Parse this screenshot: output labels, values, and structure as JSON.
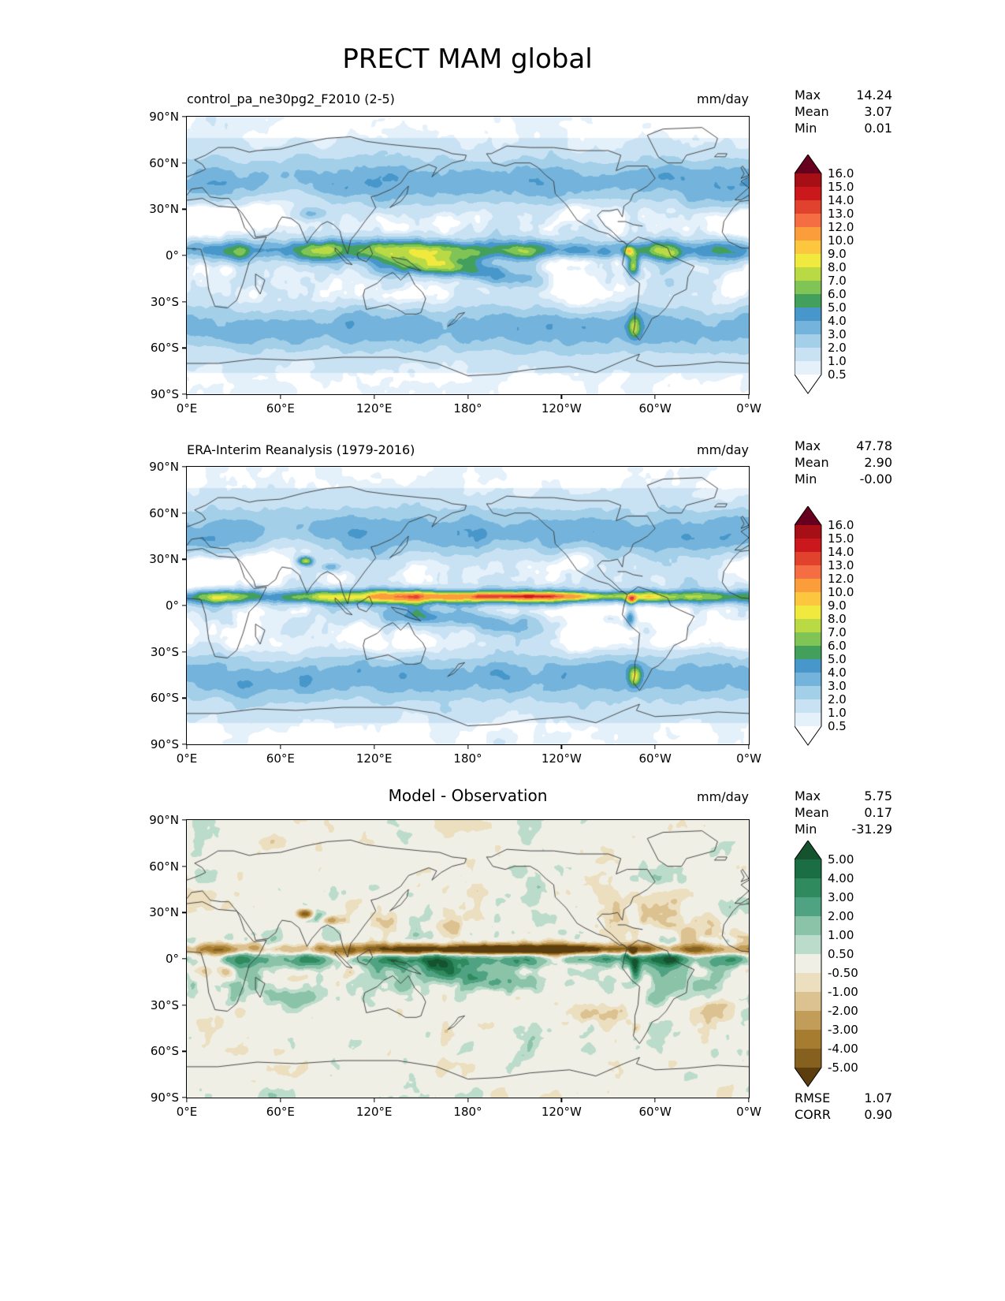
{
  "title": "PRECT MAM global",
  "axes": {
    "lat_ticks": [
      "90°N",
      "60°N",
      "30°N",
      "0°",
      "30°S",
      "60°S",
      "90°S"
    ],
    "lon_ticks": [
      "0°E",
      "60°E",
      "120°E",
      "180°",
      "120°W",
      "60°W",
      "0°W"
    ]
  },
  "panels": [
    {
      "subtitle": "control_pa_ne30pg2_F2010 (2-5)",
      "units": "mm/day",
      "stats": [
        {
          "label": "Max",
          "value": "14.24"
        },
        {
          "label": "Mean",
          "value": "3.07"
        },
        {
          "label": "Min",
          "value": "0.01"
        }
      ],
      "colorbar": {
        "labels": [
          "16.0",
          "15.0",
          "14.0",
          "13.0",
          "12.0",
          "10.0",
          "9.0",
          "8.0",
          "7.0",
          "6.0",
          "5.0",
          "4.0",
          "3.0",
          "2.0",
          "1.0",
          "0.5"
        ],
        "levels": [
          0.5,
          1,
          2,
          3,
          4,
          5,
          6,
          7,
          8,
          9,
          10,
          12,
          13,
          14,
          15,
          16
        ],
        "colors_low_to_high": [
          "#ffffff",
          "#e4f0fa",
          "#c9e2f3",
          "#a3cfe9",
          "#74b4dc",
          "#4897cb",
          "#42a05c",
          "#7fc454",
          "#bada45",
          "#f2e93e",
          "#fdc63f",
          "#fb9d3b",
          "#f46d43",
          "#e1422e",
          "#cb181d",
          "#a50f15",
          "#67001f"
        ]
      }
    },
    {
      "subtitle": "ERA-Interim Reanalysis (1979-2016)",
      "units": "mm/day",
      "stats": [
        {
          "label": "Max",
          "value": "47.78"
        },
        {
          "label": "Mean",
          "value": "2.90"
        },
        {
          "label": "Min",
          "value": "-0.00"
        }
      ],
      "colorbar": {
        "labels": [
          "16.0",
          "15.0",
          "14.0",
          "13.0",
          "12.0",
          "10.0",
          "9.0",
          "8.0",
          "7.0",
          "6.0",
          "5.0",
          "4.0",
          "3.0",
          "2.0",
          "1.0",
          "0.5"
        ],
        "levels": [
          0.5,
          1,
          2,
          3,
          4,
          5,
          6,
          7,
          8,
          9,
          10,
          12,
          13,
          14,
          15,
          16
        ],
        "colors_low_to_high": [
          "#ffffff",
          "#e4f0fa",
          "#c9e2f3",
          "#a3cfe9",
          "#74b4dc",
          "#4897cb",
          "#42a05c",
          "#7fc454",
          "#bada45",
          "#f2e93e",
          "#fdc63f",
          "#fb9d3b",
          "#f46d43",
          "#e1422e",
          "#cb181d",
          "#a50f15",
          "#67001f"
        ]
      }
    },
    {
      "subtitle": "Model - Observation",
      "units": "mm/day",
      "stats": [
        {
          "label": "Max",
          "value": "5.75"
        },
        {
          "label": "Mean",
          "value": "0.17"
        },
        {
          "label": "Min",
          "value": "-31.29"
        }
      ],
      "colorbar": {
        "labels": [
          "5.00",
          "4.00",
          "3.00",
          "2.00",
          "1.00",
          "0.50",
          "-0.50",
          "-1.00",
          "-2.00",
          "-3.00",
          "-4.00",
          "-5.00"
        ],
        "levels": [
          -5,
          -4,
          -3,
          -2,
          -1,
          -0.5,
          0.5,
          1,
          2,
          3,
          4,
          5
        ],
        "colors_low_to_high": [
          "#5b3d0e",
          "#85601f",
          "#a67c30",
          "#c29d59",
          "#dcc291",
          "#ecdfc0",
          "#f0efe6",
          "#bcdccb",
          "#8ac3a8",
          "#4fa383",
          "#2f8a5d",
          "#1b6e44",
          "#14532d"
        ]
      },
      "extra_stats": [
        {
          "label": "RMSE",
          "value": "1.07"
        },
        {
          "label": "CORR",
          "value": "0.90"
        }
      ]
    }
  ],
  "chart_data": {
    "type": "heatmap",
    "subtype": "filled-contour global maps (equirectangular, lon 0E..360, lat 90N..90S)",
    "variable": "PRECT",
    "season": "MAM",
    "region": "global",
    "units": "mm/day",
    "x_ticks": [
      "0°E",
      "60°E",
      "120°E",
      "180°",
      "120°W",
      "60°W",
      "0°W"
    ],
    "y_ticks": [
      "90°N",
      "60°N",
      "30°N",
      "0°",
      "30°S",
      "60°S",
      "90°S"
    ],
    "panels": [
      {
        "title": "control_pa_ne30pg2_F2010 (2-5)",
        "max": 14.24,
        "mean": 3.07,
        "min": 0.01,
        "contour_levels": [
          0.5,
          1,
          2,
          3,
          4,
          5,
          6,
          7,
          8,
          9,
          10,
          12,
          13,
          14,
          15,
          16
        ],
        "palette": "white-blue-green-yellow-orange-red"
      },
      {
        "title": "ERA-Interim Reanalysis (1979-2016)",
        "max": 47.78,
        "mean": 2.9,
        "min": -0.0,
        "contour_levels": [
          0.5,
          1,
          2,
          3,
          4,
          5,
          6,
          7,
          8,
          9,
          10,
          12,
          13,
          14,
          15,
          16
        ],
        "palette": "white-blue-green-yellow-orange-red"
      },
      {
        "title": "Model - Observation",
        "max": 5.75,
        "mean": 0.17,
        "min": -31.29,
        "contour_levels": [
          -5,
          -4,
          -3,
          -2,
          -1,
          -0.5,
          0.5,
          1,
          2,
          3,
          4,
          5
        ],
        "palette": "brown-cream-teal-green diverging",
        "rmse": 1.07,
        "corr": 0.9
      }
    ]
  }
}
